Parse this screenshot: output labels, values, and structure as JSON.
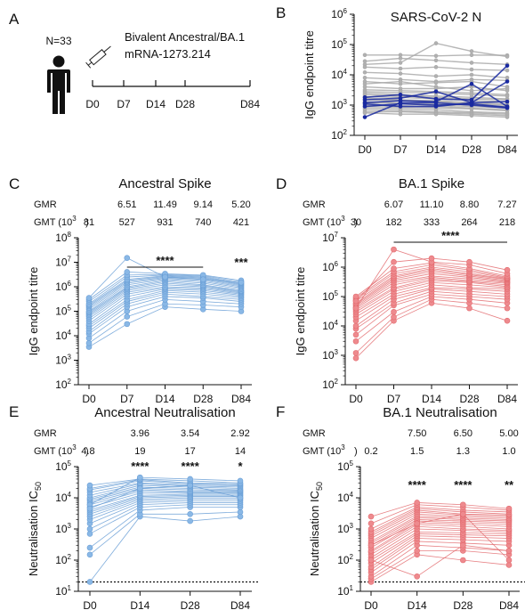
{
  "chart_data": [
    {
      "panel": "A",
      "type": "table",
      "n_label": "N=33",
      "vaccine_line1": "Bivalent Ancestral/BA.1",
      "vaccine_line2": "mRNA-1273.214",
      "timepoints": [
        "D0",
        "D7",
        "D14",
        "D28",
        "D84"
      ]
    },
    {
      "panel": "B",
      "type": "line",
      "title": "SARS-CoV-2 N",
      "ylabel": "IgG endpoint titre",
      "yscale": "log",
      "ylim": [
        100,
        1000000
      ],
      "yticks": [
        2,
        3,
        4,
        5,
        6
      ],
      "categories": [
        "D0",
        "D7",
        "D14",
        "D28",
        "D84"
      ],
      "series_grey": [
        [
          45000,
          45000,
          42000,
          45000,
          44000
        ],
        [
          22000,
          25000,
          110000,
          60000,
          40000
        ],
        [
          28000,
          35000,
          30000,
          25000,
          22000
        ],
        [
          18000,
          16000,
          18000,
          15000,
          14000
        ],
        [
          12000,
          11000,
          9000,
          10000,
          8000
        ],
        [
          8000,
          7000,
          6000,
          7000,
          6500
        ],
        [
          6000,
          5000,
          5500,
          6000,
          4000
        ],
        [
          5000,
          6000,
          4000,
          3000,
          3500
        ],
        [
          4000,
          3500,
          3500,
          4000,
          3000
        ],
        [
          3200,
          3000,
          2800,
          2500,
          2200
        ],
        [
          2800,
          2600,
          2500,
          2200,
          2000
        ],
        [
          2500,
          2200,
          2000,
          1800,
          1600
        ],
        [
          2200,
          2000,
          1800,
          1600,
          1500
        ],
        [
          1900,
          1800,
          1600,
          1400,
          1300
        ],
        [
          1700,
          1500,
          1400,
          1200,
          1100
        ],
        [
          1500,
          1400,
          1300,
          1100,
          1000
        ],
        [
          1300,
          1200,
          1100,
          1000,
          900
        ],
        [
          1200,
          1100,
          1000,
          900,
          800
        ],
        [
          1000,
          950,
          900,
          800,
          700
        ],
        [
          900,
          850,
          800,
          750,
          650
        ],
        [
          800,
          750,
          700,
          600,
          550
        ],
        [
          700,
          650,
          600,
          550,
          500
        ],
        [
          600,
          600,
          550,
          500,
          450
        ],
        [
          550,
          500,
          500,
          450,
          400
        ]
      ],
      "series_blue": [
        [
          1800,
          2200,
          1600,
          1500,
          20000
        ],
        [
          1500,
          1700,
          2800,
          1200,
          6000
        ],
        [
          1200,
          1400,
          1300,
          5000,
          900
        ],
        [
          900,
          1100,
          1000,
          1100,
          850
        ],
        [
          400,
          1200,
          1200,
          1000,
          800
        ],
        [
          1100,
          900,
          900,
          1200,
          1300
        ]
      ]
    },
    {
      "panel": "C",
      "type": "line",
      "title": "Ancestral Spike",
      "ylabel": "IgG endpoint titre",
      "yscale": "log",
      "ylim": [
        100,
        100000000
      ],
      "yticks": [
        2,
        3,
        4,
        5,
        6,
        7,
        8
      ],
      "categories": [
        "D0",
        "D7",
        "D14",
        "D28",
        "D84"
      ],
      "gmr_label": "GMR",
      "gmr": [
        "",
        "6.51",
        "11.49",
        "9.14",
        "5.20"
      ],
      "gmt_label": "GMT (10",
      "gmt_exp": "3",
      "gmt": [
        "81",
        "527",
        "931",
        "740",
        "421"
      ],
      "sig_bar": "****",
      "sig_d84": "***",
      "series": [
        [
          3500,
          30000,
          150000,
          120000,
          100000
        ],
        [
          5000,
          60000,
          200000,
          180000,
          150000
        ],
        [
          8000,
          100000,
          300000,
          250000,
          200000
        ],
        [
          12000,
          150000,
          400000,
          350000,
          250000
        ],
        [
          15000,
          200000,
          500000,
          400000,
          300000
        ],
        [
          20000,
          250000,
          600000,
          500000,
          350000
        ],
        [
          25000,
          300000,
          700000,
          600000,
          400000
        ],
        [
          30000,
          400000,
          800000,
          700000,
          450000
        ],
        [
          40000,
          500000,
          900000,
          800000,
          500000
        ],
        [
          50000,
          600000,
          1000000,
          900000,
          550000
        ],
        [
          60000,
          700000,
          1200000,
          1000000,
          600000
        ],
        [
          70000,
          800000,
          1400000,
          1100000,
          650000
        ],
        [
          80000,
          900000,
          1600000,
          1200000,
          700000
        ],
        [
          90000,
          1000000,
          1800000,
          1400000,
          800000
        ],
        [
          100000,
          1200000,
          2000000,
          1600000,
          900000
        ],
        [
          120000,
          1400000,
          2200000,
          1800000,
          1000000
        ],
        [
          140000,
          1600000,
          2400000,
          2000000,
          1100000
        ],
        [
          160000,
          1800000,
          2600000,
          2200000,
          1200000
        ],
        [
          180000,
          2000000,
          2800000,
          2400000,
          1300000
        ],
        [
          200000,
          2500000,
          3000000,
          2600000,
          1400000
        ],
        [
          250000,
          3000000,
          3200000,
          2800000,
          1600000
        ],
        [
          300000,
          4000000,
          3400000,
          3000000,
          1800000
        ],
        [
          350000,
          15000000,
          2500000,
          2000000,
          1500000
        ]
      ]
    },
    {
      "panel": "D",
      "type": "line",
      "title": "BA.1 Spike",
      "ylabel": "IgG endpoint titre",
      "yscale": "log",
      "ylim": [
        100,
        10000000
      ],
      "yticks": [
        2,
        3,
        4,
        5,
        6,
        7
      ],
      "categories": [
        "D0",
        "D7",
        "D14",
        "D28",
        "D84"
      ],
      "gmr_label": "GMR",
      "gmr": [
        "",
        "6.07",
        "11.10",
        "8.80",
        "7.27"
      ],
      "gmt_label": "GMT (10",
      "gmt_exp": "3",
      "gmt": [
        "30",
        "182",
        "333",
        "264",
        "218"
      ],
      "sig_bar": "****",
      "series": [
        [
          800,
          15000,
          60000,
          40000,
          15000
        ],
        [
          1200,
          20000,
          80000,
          60000,
          40000
        ],
        [
          3000,
          30000,
          100000,
          80000,
          60000
        ],
        [
          5000,
          50000,
          120000,
          100000,
          80000
        ],
        [
          8000,
          60000,
          150000,
          120000,
          100000
        ],
        [
          10000,
          80000,
          180000,
          150000,
          120000
        ],
        [
          15000,
          100000,
          200000,
          180000,
          150000
        ],
        [
          20000,
          120000,
          250000,
          200000,
          180000
        ],
        [
          25000,
          150000,
          300000,
          250000,
          200000
        ],
        [
          30000,
          180000,
          350000,
          300000,
          220000
        ],
        [
          35000,
          200000,
          400000,
          320000,
          250000
        ],
        [
          40000,
          250000,
          450000,
          350000,
          280000
        ],
        [
          45000,
          300000,
          500000,
          400000,
          300000
        ],
        [
          50000,
          350000,
          600000,
          450000,
          320000
        ],
        [
          55000,
          400000,
          700000,
          500000,
          350000
        ],
        [
          60000,
          450000,
          800000,
          550000,
          380000
        ],
        [
          70000,
          500000,
          900000,
          600000,
          400000
        ],
        [
          80000,
          600000,
          1000000,
          700000,
          420000
        ],
        [
          90000,
          700000,
          1200000,
          800000,
          450000
        ],
        [
          100000,
          900000,
          1400000,
          900000,
          500000
        ],
        [
          40000,
          4000000,
          1500000,
          1200000,
          600000
        ],
        [
          70000,
          1500000,
          2000000,
          1500000,
          800000
        ]
      ]
    },
    {
      "panel": "E",
      "type": "line",
      "title": "Ancestral Neutralisation",
      "ylabel": "Neutralisation IC",
      "ylabel_sub": "50",
      "yscale": "log",
      "ylim": [
        10,
        100000
      ],
      "yticks": [
        1,
        2,
        3,
        4,
        5
      ],
      "dotted_line": 20,
      "categories": [
        "D0",
        "D14",
        "D28",
        "D84"
      ],
      "gmr_label": "GMR",
      "gmr": [
        "",
        "3.96",
        "3.54",
        "2.92"
      ],
      "gmt_label": "GMT (10",
      "gmt_exp": "3",
      "gmt": [
        "4.8",
        "19",
        "17",
        "14"
      ],
      "sig": [
        "",
        "****",
        "****",
        "*"
      ],
      "series": [
        [
          20,
          2500,
          1800,
          2500
        ],
        [
          150,
          3000,
          3000,
          3500
        ],
        [
          250,
          4000,
          5000,
          5000
        ],
        [
          700,
          5000,
          6000,
          6000
        ],
        [
          1000,
          6000,
          7000,
          7000
        ],
        [
          1500,
          7000,
          8000,
          8000
        ],
        [
          2000,
          8000,
          9000,
          9000
        ],
        [
          2500,
          9000,
          10000,
          10000
        ],
        [
          3000,
          10000,
          11000,
          11000
        ],
        [
          3500,
          11000,
          12000,
          12000
        ],
        [
          4000,
          12000,
          13000,
          13000
        ],
        [
          5000,
          14000,
          14000,
          14000
        ],
        [
          6000,
          16000,
          15000,
          15000
        ],
        [
          7000,
          18000,
          16000,
          16000
        ],
        [
          8000,
          20000,
          18000,
          17000
        ],
        [
          9000,
          22000,
          20000,
          18000
        ],
        [
          10000,
          25000,
          22000,
          20000
        ],
        [
          12000,
          28000,
          24000,
          22000
        ],
        [
          15000,
          30000,
          26000,
          24000
        ],
        [
          18000,
          35000,
          28000,
          26000
        ],
        [
          20000,
          38000,
          30000,
          28000
        ],
        [
          25000,
          40000,
          35000,
          30000
        ],
        [
          6000,
          45000,
          40000,
          35000
        ],
        [
          4500,
          20000,
          25000,
          10000
        ]
      ]
    },
    {
      "panel": "F",
      "type": "line",
      "title": "BA.1 Neutralisation",
      "ylabel": "Neutralisation IC",
      "ylabel_sub": "50",
      "yscale": "log",
      "ylim": [
        10,
        100000
      ],
      "yticks": [
        1,
        2,
        3,
        4,
        5
      ],
      "dotted_line": 20,
      "categories": [
        "D0",
        "D14",
        "D28",
        "D84"
      ],
      "gmr_label": "GMR",
      "gmr": [
        "",
        "7.50",
        "6.50",
        "5.00"
      ],
      "gmt_label": "GMT (10",
      "gmt_exp": "3",
      "gmt": [
        "0.2",
        "1.5",
        "1.3",
        "1.0"
      ],
      "sig": [
        "",
        "****",
        "****",
        "**"
      ],
      "series": [
        [
          20,
          150,
          100,
          70
        ],
        [
          25,
          200,
          200,
          150
        ],
        [
          30,
          300,
          250,
          200
        ],
        [
          40,
          400,
          350,
          300
        ],
        [
          50,
          500,
          450,
          400
        ],
        [
          60,
          600,
          550,
          500
        ],
        [
          80,
          700,
          650,
          600
        ],
        [
          100,
          800,
          750,
          700
        ],
        [
          120,
          1000,
          900,
          800
        ],
        [
          150,
          1200,
          1000,
          900
        ],
        [
          180,
          1400,
          1200,
          1000
        ],
        [
          200,
          1600,
          1400,
          1200
        ],
        [
          250,
          1800,
          1600,
          1400
        ],
        [
          300,
          2000,
          1800,
          1600
        ],
        [
          350,
          2300,
          2000,
          1800
        ],
        [
          400,
          2600,
          2200,
          2000
        ],
        [
          500,
          3000,
          2500,
          2200
        ],
        [
          600,
          3500,
          2800,
          2500
        ],
        [
          700,
          4000,
          3000,
          2800
        ],
        [
          800,
          4500,
          3500,
          3000
        ],
        [
          1000,
          5000,
          4000,
          3500
        ],
        [
          1500,
          6000,
          5000,
          4000
        ],
        [
          2500,
          7000,
          6000,
          4500
        ],
        [
          100,
          30,
          300,
          200
        ],
        [
          300,
          1500,
          3000,
          100
        ]
      ]
    }
  ]
}
